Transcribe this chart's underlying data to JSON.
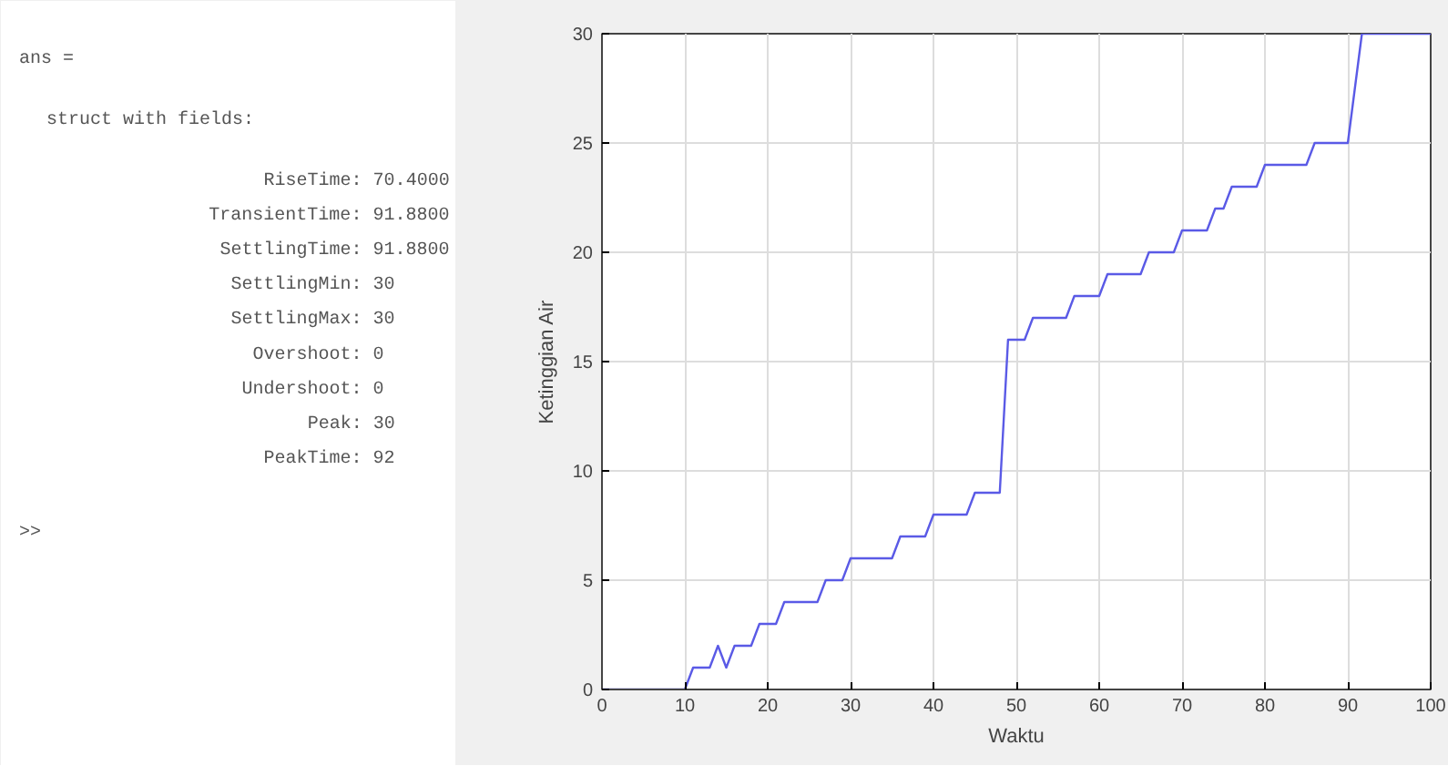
{
  "chart_data": [
    {
      "type": "other",
      "annotations": [
        "ans =",
        "struct with fields:",
        "RiseTime: 70.4000",
        "TransientTime: 91.8800",
        "SettlingTime: 91.8800",
        "SettlingMin: 30",
        "SettlingMax: 30",
        "Overshoot: 0",
        "Undershoot: 0",
        "Peak: 30",
        "PeakTime: 92",
        ">>"
      ]
    },
    {
      "type": "line",
      "xlabel": "Waktu",
      "ylabel": "Ketinggian Air",
      "xlim": [
        0,
        100
      ],
      "ylim": [
        0,
        30
      ],
      "xticks": [
        0,
        10,
        20,
        30,
        40,
        50,
        60,
        70,
        80,
        90,
        100
      ],
      "yticks": [
        0,
        5,
        10,
        15,
        20,
        25,
        30
      ],
      "grid": true,
      "series": [
        {
          "color": "#5a5ae6",
          "x": [
            0,
            9,
            10,
            11,
            13,
            14,
            15,
            16,
            18,
            19,
            21,
            22,
            26,
            27,
            29,
            30,
            35,
            36,
            39,
            40,
            44,
            45,
            48,
            49,
            51,
            52,
            56,
            57,
            60,
            61,
            65,
            66,
            69,
            70,
            73,
            74,
            75,
            76,
            79,
            80,
            85,
            86,
            90,
            91.7,
            100
          ],
          "values": [
            0,
            0,
            0,
            1,
            1,
            2,
            1,
            2,
            2,
            3,
            3,
            4,
            4,
            5,
            5,
            6,
            6,
            7,
            7,
            8,
            8,
            9,
            9,
            16,
            16,
            17,
            17,
            18,
            18,
            19,
            19,
            20,
            20,
            21,
            21,
            22,
            22,
            23,
            23,
            24,
            24,
            25,
            25,
            30,
            30
          ]
        }
      ]
    }
  ]
}
